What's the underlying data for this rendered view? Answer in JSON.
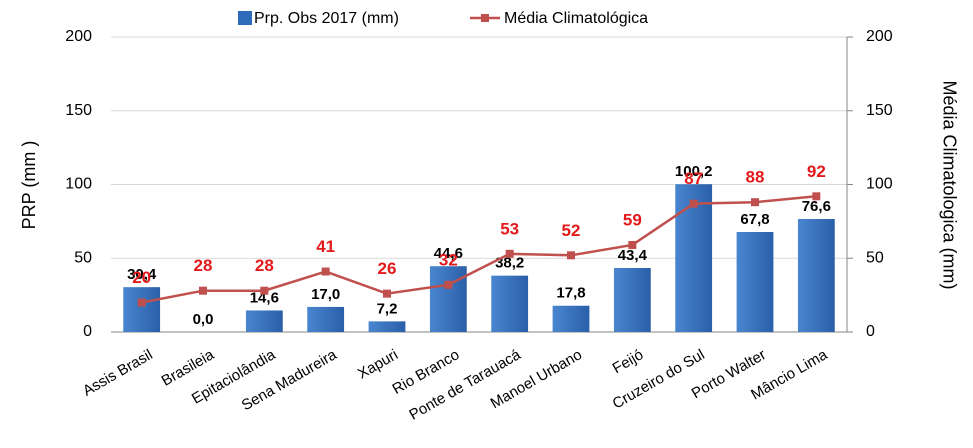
{
  "chart_data": {
    "type": "bar_line",
    "categories": [
      "Assis Brasil",
      "Brasileia",
      "Epitaciolândia",
      "Sena Madureira",
      "Xapuri",
      "Rio Branco",
      "Ponte de Tarauacá",
      "Manoel Urbano",
      "Feijó",
      "Cruzeiro do Sul",
      "Porto Walter",
      "Mâncio Lima"
    ],
    "series": [
      {
        "name": "Prp. Obs 2017 (mm)",
        "type": "bar",
        "color": "#2e6bb8",
        "values": [
          30.4,
          0.0,
          14.6,
          17.0,
          7.2,
          44.6,
          38.2,
          17.8,
          43.4,
          100.2,
          67.8,
          76.6
        ],
        "value_labels": [
          "30,4",
          "0,0",
          "14,6",
          "17,0",
          "7,2",
          "44,6",
          "38,2",
          "17,8",
          "43,4",
          "100,2",
          "67,8",
          "76,6"
        ]
      },
      {
        "name": "Média Climatológica",
        "type": "line",
        "axis": "y2",
        "color": "#c0504d",
        "values": [
          20,
          28,
          28,
          41,
          26,
          32,
          53,
          52,
          59,
          87,
          88,
          92
        ]
      }
    ],
    "ylabel": "PRP (mm )",
    "y2label": "Média Climatologica  (mm)",
    "ylim": [
      0,
      200
    ],
    "yticks": [
      0,
      50,
      100,
      150,
      200
    ],
    "y2lim": [
      0,
      200
    ],
    "y2ticks": [
      0,
      50,
      100,
      150,
      200
    ],
    "grid": true,
    "legend": "top"
  }
}
